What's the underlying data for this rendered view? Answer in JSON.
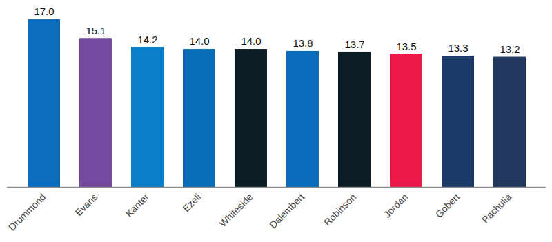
{
  "chart_data": {
    "type": "bar",
    "categories": [
      "Drummond",
      "Evans",
      "Kanter",
      "Ezeli",
      "Whiteside",
      "Dalembert",
      "Robinson",
      "Jordan",
      "Gobert",
      "Pachulia"
    ],
    "values": [
      17.0,
      15.1,
      14.2,
      14.0,
      14.0,
      13.8,
      13.7,
      13.5,
      13.3,
      13.2
    ],
    "value_labels": [
      "17.0",
      "15.1",
      "14.2",
      "14.0",
      "14.0",
      "13.8",
      "13.7",
      "13.5",
      "13.3",
      "13.2"
    ],
    "colors": [
      "#0b6cc0",
      "#744a9e",
      "#0a7ec8",
      "#0a6db9",
      "#0b1c26",
      "#0a6cba",
      "#0b1c26",
      "#ec1a4b",
      "#1a3b68",
      "#22375e"
    ],
    "ylim": [
      0,
      17
    ],
    "data_labels": true,
    "tick_labels": "x",
    "grid": false
  }
}
